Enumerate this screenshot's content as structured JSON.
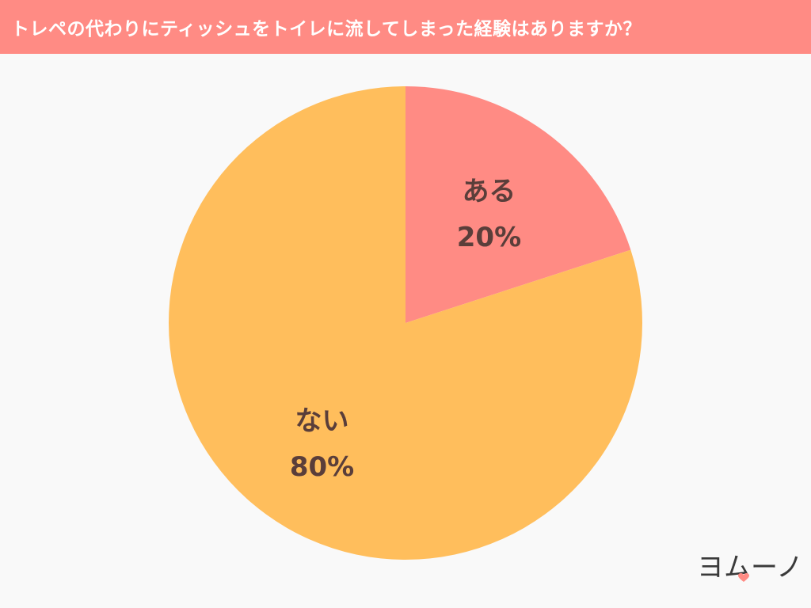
{
  "header": {
    "title": "トレペの代わりにティッシュをトイレに流してしまった経験はありますか？"
  },
  "chart_data": {
    "type": "pie",
    "title": "トレペの代わりにティッシュをトイレに流してしまった経験はありますか？",
    "slices": [
      {
        "label": "ある",
        "value": 20,
        "value_label": "20%",
        "color": "#ff8b84"
      },
      {
        "label": "ない",
        "value": 80,
        "value_label": "80%",
        "color": "#ffbe5c"
      }
    ],
    "start_angle": "12-o'clock",
    "direction": "clockwise"
  },
  "logo": {
    "text": "ヨムーノ",
    "icon": "heart-icon",
    "icon_color": "#ff8b84"
  },
  "colors": {
    "header_bg": "#ff8b84",
    "background": "#f9f9f9",
    "label_text": "#5a3e3a"
  }
}
